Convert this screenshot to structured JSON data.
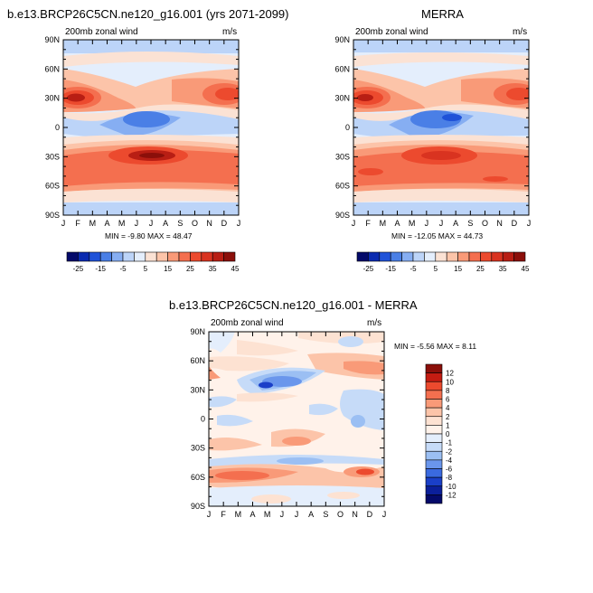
{
  "panels": [
    {
      "title": "b.e13.BRCP26C5CN.ne120_g16.001 (yrs 2071-2099)",
      "left_label": "200mb zonal wind",
      "right_label": "m/s",
      "min_label": "MIN =",
      "min_value": "-9.80",
      "max_label": "MAX =",
      "max_value": "48.47"
    },
    {
      "title": "MERRA",
      "left_label": "200mb zonal wind",
      "right_label": "m/s",
      "min_label": "MIN =",
      "min_value": "-12.05",
      "max_label": "MAX =",
      "max_value": "44.73"
    },
    {
      "title": "b.e13.BRCP26C5CN.ne120_g16.001 - MERRA",
      "left_label": "200mb zonal wind",
      "right_label": "m/s",
      "min_label": "MIN =",
      "min_value": "-5.56",
      "max_label": "MAX =",
      "max_value": "8.11"
    }
  ],
  "chart_data": [
    {
      "type": "heatmap",
      "title": "b.e13.BRCP26C5CN.ne120_g16.001 (yrs 2071-2099)",
      "x_ticks": [
        "J",
        "F",
        "M",
        "A",
        "M",
        "J",
        "J",
        "A",
        "S",
        "O",
        "N",
        "D",
        "J"
      ],
      "y_ticks": [
        "90N",
        "60N",
        "30N",
        "0",
        "30S",
        "60S",
        "90S"
      ],
      "colorbar_labels": [
        "-25",
        "-15",
        "-5",
        "5",
        "15",
        "25",
        "35",
        "45"
      ],
      "min": -9.8,
      "max": 48.47
    },
    {
      "type": "heatmap",
      "title": "MERRA",
      "x_ticks": [
        "J",
        "F",
        "M",
        "A",
        "M",
        "J",
        "J",
        "A",
        "S",
        "O",
        "N",
        "D",
        "J"
      ],
      "y_ticks": [
        "90N",
        "60N",
        "30N",
        "0",
        "30S",
        "60S",
        "90S"
      ],
      "colorbar_labels": [
        "-25",
        "-15",
        "-5",
        "5",
        "15",
        "25",
        "35",
        "45"
      ],
      "min": -12.05,
      "max": 44.73
    },
    {
      "type": "heatmap",
      "title": "b.e13.BRCP26C5CN.ne120_g16.001 - MERRA",
      "x_ticks": [
        "J",
        "F",
        "M",
        "A",
        "M",
        "J",
        "J",
        "A",
        "S",
        "O",
        "N",
        "D",
        "J"
      ],
      "y_ticks": [
        "90N",
        "60N",
        "30N",
        "0",
        "30S",
        "60S",
        "90S"
      ],
      "colorbar_labels": [
        "12",
        "10",
        "8",
        "6",
        "4",
        "2",
        "1",
        "0",
        "-1",
        "-2",
        "-4",
        "-6",
        "-8",
        "-10",
        "-12"
      ],
      "min": -5.56,
      "max": 8.11
    }
  ],
  "colors": {
    "abs_scale": [
      "#040a6a",
      "#0a2ab0",
      "#1f52d8",
      "#4a7fe6",
      "#86aef2",
      "#bcd4f8",
      "#e4eefc",
      "#fbe2d4",
      "#fcc4a9",
      "#f99a78",
      "#f46f4f",
      "#ec4a2e",
      "#d93320",
      "#b81e14",
      "#8b0f0a"
    ],
    "diff_scale": [
      "#8b0f0a",
      "#c41c12",
      "#ec4a2e",
      "#f46f4f",
      "#f99a78",
      "#fcc4a9",
      "#fde2d2",
      "#fff2ea",
      "#e4eefc",
      "#c6dbf8",
      "#9bbff3",
      "#6a96ec",
      "#3a6ae0",
      "#1a3fc8",
      "#0b1f9a",
      "#040a6a"
    ]
  }
}
